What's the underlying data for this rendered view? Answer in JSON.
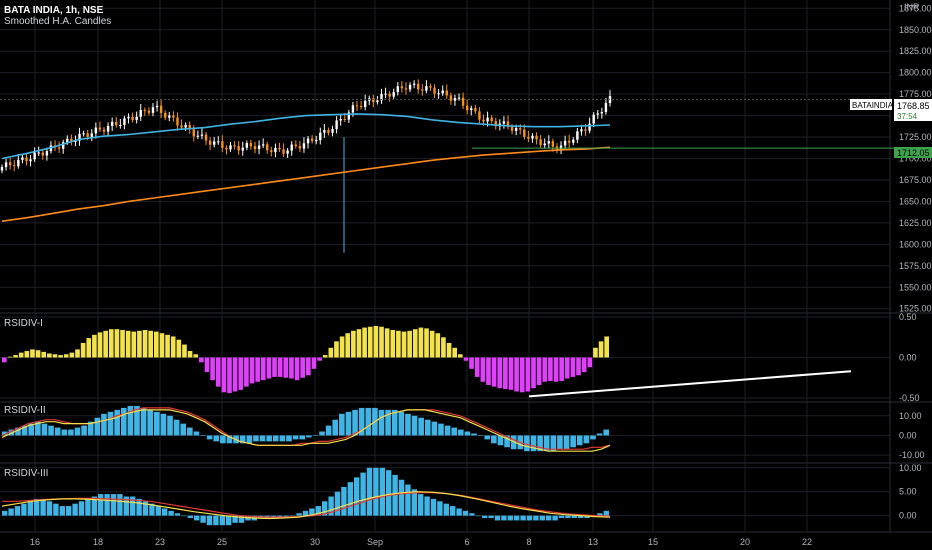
{
  "header": {
    "title": "BATA INDIA, 1h, NSE",
    "indicator": "Smoothed H.A. Candles",
    "currency": "INR"
  },
  "price_tag": {
    "symbol": "BATAINDIA",
    "value": "1768.85",
    "countdown": "37:54",
    "line_level": "1712.05"
  },
  "colors": {
    "background": "#000000",
    "grid": "#1c1f26",
    "bull": "#ffffff",
    "bear": "#f7931a",
    "ema_fast": "#3fb4e5",
    "ema_slow": "#ff8a1c",
    "hline": "#3fa34d",
    "hist_pos": "#f2e24c",
    "hist_neg": "#e040fb",
    "hist2": "#3fb4e5",
    "sig_red": "#e53935",
    "sig_yellow": "#f6e04b",
    "trend": "#ffffff"
  },
  "chart_data": [
    {
      "type": "candlestick",
      "title": "BATA INDIA, 1h, NSE",
      "ylim": [
        1520,
        1880
      ],
      "yticks": [
        "1875.00",
        "1850.00",
        "1825.00",
        "1800.00",
        "1775.00",
        "1750.00",
        "1725.00",
        "1700.00",
        "1675.00",
        "1650.00",
        "1625.00",
        "1600.00",
        "1575.00",
        "1550.00",
        "1525.00"
      ],
      "xticks": [
        "16",
        "18",
        "23",
        "25",
        "30",
        "Sep",
        "6",
        "8",
        "13",
        "15",
        "20",
        "22"
      ],
      "hlevel": 1712.05,
      "ema_fast": [
        1700,
        1706,
        1713,
        1722,
        1726,
        1728,
        1731,
        1734,
        1736,
        1740,
        1743,
        1747,
        1750,
        1751,
        1752,
        1751,
        1749,
        1745,
        1742,
        1740,
        1738,
        1737,
        1737,
        1738,
        1739
      ],
      "ema_slow": [
        1627,
        1631,
        1636,
        1641,
        1645,
        1650,
        1654,
        1658,
        1662,
        1666,
        1670,
        1674,
        1678,
        1682,
        1686,
        1690,
        1694,
        1698,
        1701,
        1704,
        1706,
        1708,
        1710,
        1711,
        1713
      ],
      "close": [
        1690,
        1700,
        1712,
        1725,
        1735,
        1746,
        1760,
        1740,
        1722,
        1712,
        1715,
        1708,
        1718,
        1735,
        1762,
        1772,
        1785,
        1780,
        1768,
        1745,
        1738,
        1722,
        1712,
        1735,
        1769
      ]
    },
    {
      "type": "histogram",
      "title": "RSIDIV-I",
      "ylim": [
        -0.55,
        0.55
      ],
      "yticks": [
        "0.50",
        "0.00",
        "-0.50"
      ],
      "values": [
        -0.06,
        0.01,
        0.03,
        0.06,
        0.08,
        0.1,
        0.09,
        0.07,
        0.05,
        0.04,
        0.03,
        0.04,
        0.06,
        0.1,
        0.18,
        0.24,
        0.28,
        0.31,
        0.33,
        0.35,
        0.35,
        0.34,
        0.33,
        0.32,
        0.33,
        0.34,
        0.33,
        0.32,
        0.3,
        0.28,
        0.26,
        0.22,
        0.16,
        0.08,
        0.04,
        -0.06,
        -0.18,
        -0.28,
        -0.36,
        -0.43,
        -0.44,
        -0.42,
        -0.4,
        -0.36,
        -0.32,
        -0.3,
        -0.28,
        -0.26,
        -0.24,
        -0.24,
        -0.25,
        -0.26,
        -0.28,
        -0.25,
        -0.22,
        -0.14,
        -0.04,
        0.03,
        0.12,
        0.2,
        0.26,
        0.3,
        0.33,
        0.35,
        0.37,
        0.38,
        0.39,
        0.38,
        0.36,
        0.34,
        0.33,
        0.32,
        0.33,
        0.35,
        0.37,
        0.36,
        0.33,
        0.3,
        0.25,
        0.18,
        0.12,
        0.04,
        -0.04,
        -0.14,
        -0.24,
        -0.3,
        -0.34,
        -0.36,
        -0.38,
        -0.39,
        -0.4,
        -0.42,
        -0.43,
        -0.42,
        -0.38,
        -0.34,
        -0.3,
        -0.29,
        -0.3,
        -0.29,
        -0.26,
        -0.24,
        -0.22,
        -0.18,
        -0.12,
        0.12,
        0.2,
        0.26
      ],
      "trendline": [
        [
          0.575,
          -0.48
        ],
        [
          0.925,
          -0.17
        ]
      ]
    },
    {
      "type": "histogram",
      "title": "RSIDIV-II",
      "ylim": [
        -14,
        17
      ],
      "yticks": [
        "10.00",
        "0.00",
        "-10.00"
      ],
      "values": [
        2,
        3,
        4,
        5,
        6,
        7,
        6,
        5,
        4,
        3,
        3,
        4,
        5,
        7,
        9,
        11,
        12,
        13,
        14,
        15,
        15,
        14,
        13,
        12,
        11,
        10,
        8,
        6,
        4,
        2,
        0,
        -2,
        -3,
        -4,
        -4,
        -4,
        -4,
        -4,
        -3,
        -3,
        -3,
        -3,
        -3,
        -3,
        -2,
        -2,
        -1,
        0,
        2,
        5,
        8,
        11,
        12,
        13,
        14,
        14,
        14,
        13,
        13,
        13,
        12,
        11,
        10,
        9,
        8,
        7,
        6,
        5,
        4,
        3,
        2,
        1,
        0,
        -2,
        -4,
        -5,
        -6,
        -7,
        -7,
        -8,
        -8,
        -8,
        -8,
        -8,
        -7,
        -7,
        -6,
        -5,
        -4,
        -2,
        1,
        3
      ],
      "signal_red": [
        0,
        2,
        4,
        6,
        7,
        8,
        8,
        7,
        6,
        6,
        6,
        7,
        8,
        10,
        11,
        13,
        14,
        14,
        14,
        14,
        13,
        12,
        10,
        8,
        5,
        2,
        -1,
        -3,
        -4,
        -5,
        -5,
        -5,
        -5,
        -5,
        -4,
        -4,
        -3,
        -3,
        -2,
        -1,
        1,
        3,
        6,
        9,
        11,
        12,
        13,
        13,
        13,
        13,
        12,
        11,
        10,
        8,
        6,
        4,
        2,
        0,
        -2,
        -4,
        -5,
        -6,
        -7,
        -7,
        -7,
        -7,
        -7,
        -6,
        -6,
        -5
      ],
      "signal_yellow": [
        -1,
        1,
        3,
        5,
        6,
        7,
        7,
        6,
        6,
        6,
        6,
        7,
        8,
        9,
        11,
        12,
        13,
        13,
        13,
        13,
        12,
        11,
        9,
        7,
        4,
        1,
        -1,
        -3,
        -4,
        -5,
        -5,
        -5,
        -5,
        -5,
        -5,
        -4,
        -4,
        -4,
        -3,
        -2,
        0,
        3,
        6,
        9,
        11,
        12,
        13,
        13,
        13,
        12,
        11,
        10,
        9,
        7,
        5,
        3,
        1,
        -1,
        -3,
        -5,
        -6,
        -7,
        -8,
        -8,
        -8,
        -8,
        -8,
        -8,
        -7,
        -5
      ]
    },
    {
      "type": "histogram",
      "title": "RSIDIV-III",
      "ylim": [
        -3,
        11
      ],
      "yticks": [
        "10.00",
        "5.00",
        "0.00"
      ],
      "values": [
        1,
        1.5,
        2,
        2.5,
        3,
        3.5,
        3.5,
        3,
        2.5,
        2,
        2,
        2.5,
        3,
        3.5,
        4,
        4.5,
        4.5,
        4.5,
        4.5,
        4,
        4,
        3.5,
        3,
        2.5,
        2,
        1.5,
        1,
        0.5,
        0,
        -0.5,
        -1,
        -1.5,
        -2,
        -2,
        -2,
        -2,
        -1.5,
        -1.5,
        -1,
        -1,
        -0.5,
        -0.5,
        -0.5,
        -0.5,
        -0.5,
        0,
        0.5,
        1,
        1.5,
        2,
        3,
        4,
        5,
        6,
        7,
        8,
        9,
        10,
        10,
        10,
        9.5,
        8.5,
        7.5,
        6.5,
        5.5,
        4.5,
        4,
        3.5,
        3,
        2.5,
        2,
        1.5,
        1,
        0.5,
        0,
        -0.5,
        -0.5,
        -1,
        -1,
        -1,
        -1,
        -1,
        -1,
        -1,
        -1,
        -1,
        -1,
        -0.5,
        -0.5,
        -0.5,
        -0.5,
        -0.5,
        0,
        0.5,
        1
      ],
      "signal_red": [
        3,
        3,
        3.2,
        3.4,
        3.5,
        3.6,
        3.6,
        3.5,
        3.4,
        3.2,
        3,
        2.5,
        2,
        1.5,
        1,
        0.5,
        0,
        -0.2,
        -0.3,
        -0.3,
        -0.2,
        0,
        0.5,
        1.5,
        2.5,
        3.5,
        4.2,
        4.6,
        4.8,
        4.8,
        4.6,
        4.2,
        3.6,
        3,
        2.4,
        1.8,
        1.2,
        0.8,
        0.4,
        0.2,
        0,
        -0.1
      ],
      "signal_yellow": [
        2,
        2.5,
        3,
        3.3,
        3.5,
        3.5,
        3.4,
        3.2,
        3,
        2.7,
        2.3,
        1.8,
        1.3,
        0.8,
        0.4,
        0,
        -0.3,
        -0.5,
        -0.6,
        -0.5,
        -0.3,
        0.2,
        1,
        2,
        3,
        3.8,
        4.4,
        4.8,
        5,
        4.9,
        4.6,
        4.1,
        3.5,
        2.8,
        2.1,
        1.5,
        1,
        0.5,
        0.2,
        0,
        -0.2,
        -0.3
      ]
    }
  ]
}
